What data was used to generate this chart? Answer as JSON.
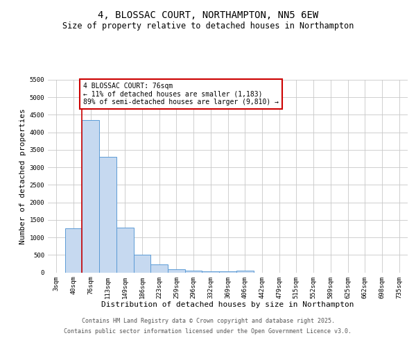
{
  "title": "4, BLOSSAC COURT, NORTHAMPTON, NN5 6EW",
  "subtitle": "Size of property relative to detached houses in Northampton",
  "xlabel": "Distribution of detached houses by size in Northampton",
  "ylabel": "Number of detached properties",
  "categories": [
    "3sqm",
    "40sqm",
    "76sqm",
    "113sqm",
    "149sqm",
    "186sqm",
    "223sqm",
    "259sqm",
    "296sqm",
    "332sqm",
    "369sqm",
    "406sqm",
    "442sqm",
    "479sqm",
    "515sqm",
    "552sqm",
    "589sqm",
    "625sqm",
    "662sqm",
    "698sqm",
    "735sqm"
  ],
  "values": [
    0,
    1250,
    4350,
    3300,
    1270,
    500,
    220,
    90,
    55,
    30,
    20,
    40,
    0,
    0,
    0,
    0,
    0,
    0,
    0,
    0,
    0
  ],
  "bar_color": "#c6d9f0",
  "bar_edge_color": "#5b9bd5",
  "red_line_index": 2,
  "red_line_color": "#cc0000",
  "annotation_line1": "4 BLOSSAC COURT: 76sqm",
  "annotation_line2": "← 11% of detached houses are smaller (1,183)",
  "annotation_line3": "89% of semi-detached houses are larger (9,810) →",
  "annotation_box_color": "#ffffff",
  "annotation_box_edge_color": "#cc0000",
  "ylim": [
    0,
    5500
  ],
  "yticks": [
    0,
    500,
    1000,
    1500,
    2000,
    2500,
    3000,
    3500,
    4000,
    4500,
    5000,
    5500
  ],
  "grid_color": "#c8c8c8",
  "background_color": "#ffffff",
  "footer_line1": "Contains HM Land Registry data © Crown copyright and database right 2025.",
  "footer_line2": "Contains public sector information licensed under the Open Government Licence v3.0.",
  "title_fontsize": 10,
  "subtitle_fontsize": 8.5,
  "tick_fontsize": 6.5,
  "label_fontsize": 8,
  "annotation_fontsize": 7,
  "footer_fontsize": 6
}
